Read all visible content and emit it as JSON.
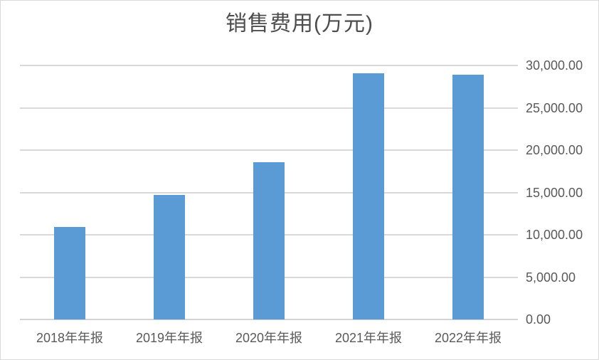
{
  "chart_data": {
    "type": "bar",
    "title": "销售费用(万元)",
    "categories": [
      "2018年年报",
      "2019年年报",
      "2020年年报",
      "2021年年报",
      "2022年年报"
    ],
    "values": [
      10900,
      14700,
      18600,
      29100,
      28900
    ],
    "xlabel": "",
    "ylabel": "",
    "ylim": [
      0,
      30000
    ],
    "ytick_step": 5000,
    "ytick_labels": [
      "0.00",
      "5,000.00",
      "10,000.00",
      "15,000.00",
      "20,000.00",
      "25,000.00",
      "30,000.00"
    ],
    "yaxis_side": "right",
    "grid": true,
    "legend": "none",
    "colors": {
      "bar": "#5B9BD5",
      "gridline": "#D9D9D9",
      "axis_line": "#D3D3D3",
      "axis_text": "#595959",
      "title_text": "#4D4D4D",
      "chart_border": "#D9D9D9"
    }
  }
}
